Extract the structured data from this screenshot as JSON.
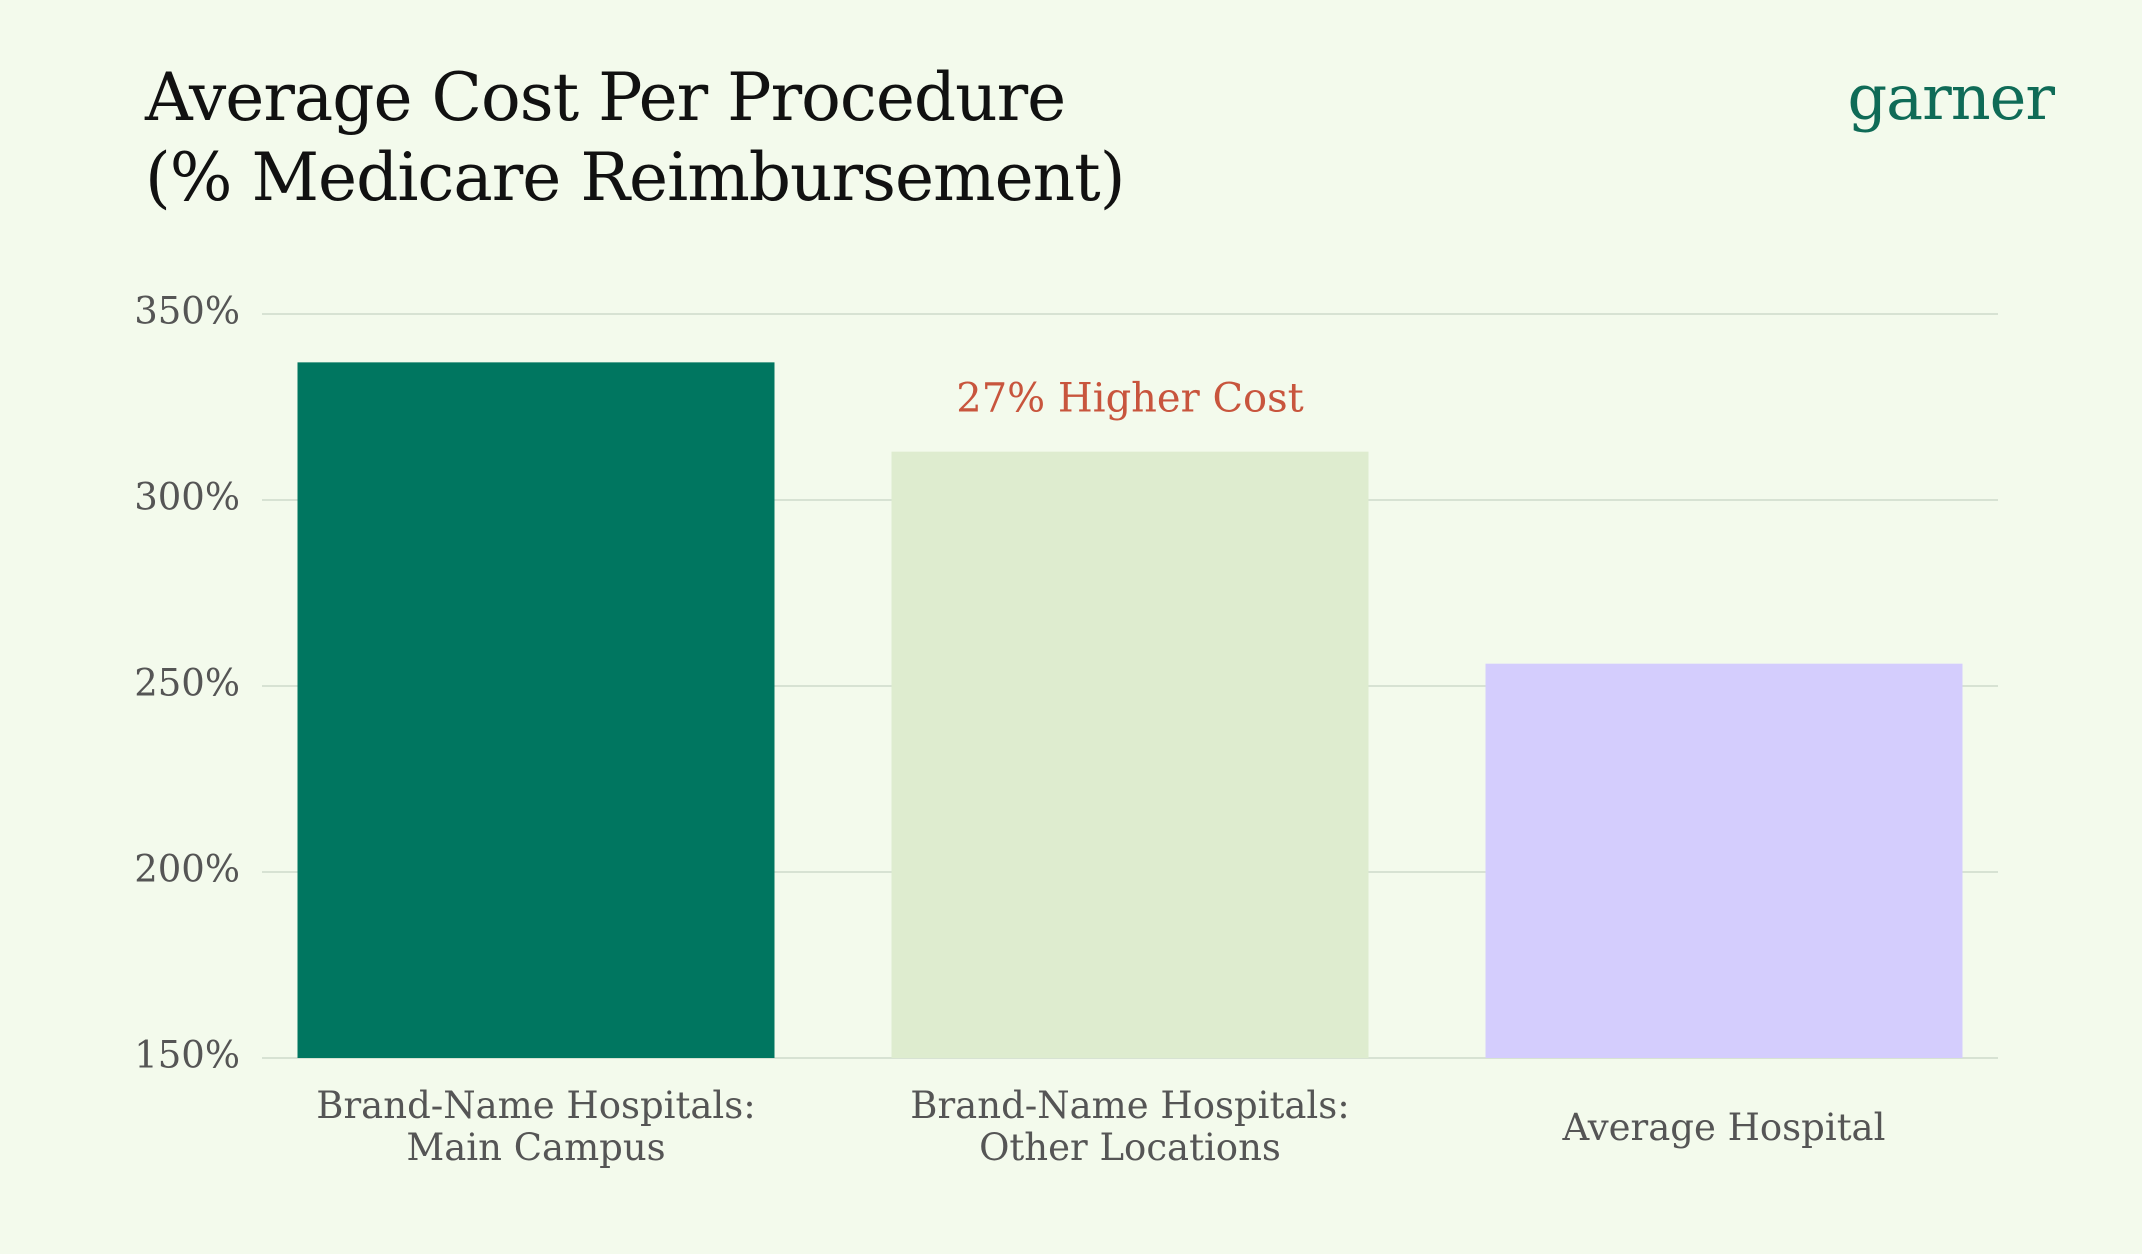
{
  "title_lines": [
    "Average Cost Per Procedure",
    "(% Medicare Reimbursement)"
  ],
  "logo_text": "garner",
  "colors": {
    "background": "#f3faec",
    "grid": "#d7e2d3",
    "tick_text": "#555555",
    "annotation": "#c8553d",
    "logo": "#0f6b57"
  },
  "chart_data": {
    "type": "bar",
    "title": "Average Cost Per Procedure (% Medicare Reimbursement)",
    "categories": [
      [
        "Brand-Name Hospitals:",
        "Main Campus"
      ],
      [
        "Brand-Name Hospitals:",
        "Other Locations"
      ],
      [
        "Average Hospital"
      ]
    ],
    "values": [
      337,
      313,
      256
    ],
    "bar_colors": [
      "#007660",
      "#deeccf",
      "#d4cdfd"
    ],
    "ylim": [
      150,
      350
    ],
    "yticks": [
      150,
      200,
      250,
      300,
      350
    ],
    "ytick_labels": [
      "150%",
      "200%",
      "250%",
      "300%",
      "350%"
    ],
    "xlabel": "",
    "ylabel": "",
    "grid": "horizontal",
    "annotation": {
      "text": "27% Higher Cost",
      "category_index": 1
    }
  }
}
